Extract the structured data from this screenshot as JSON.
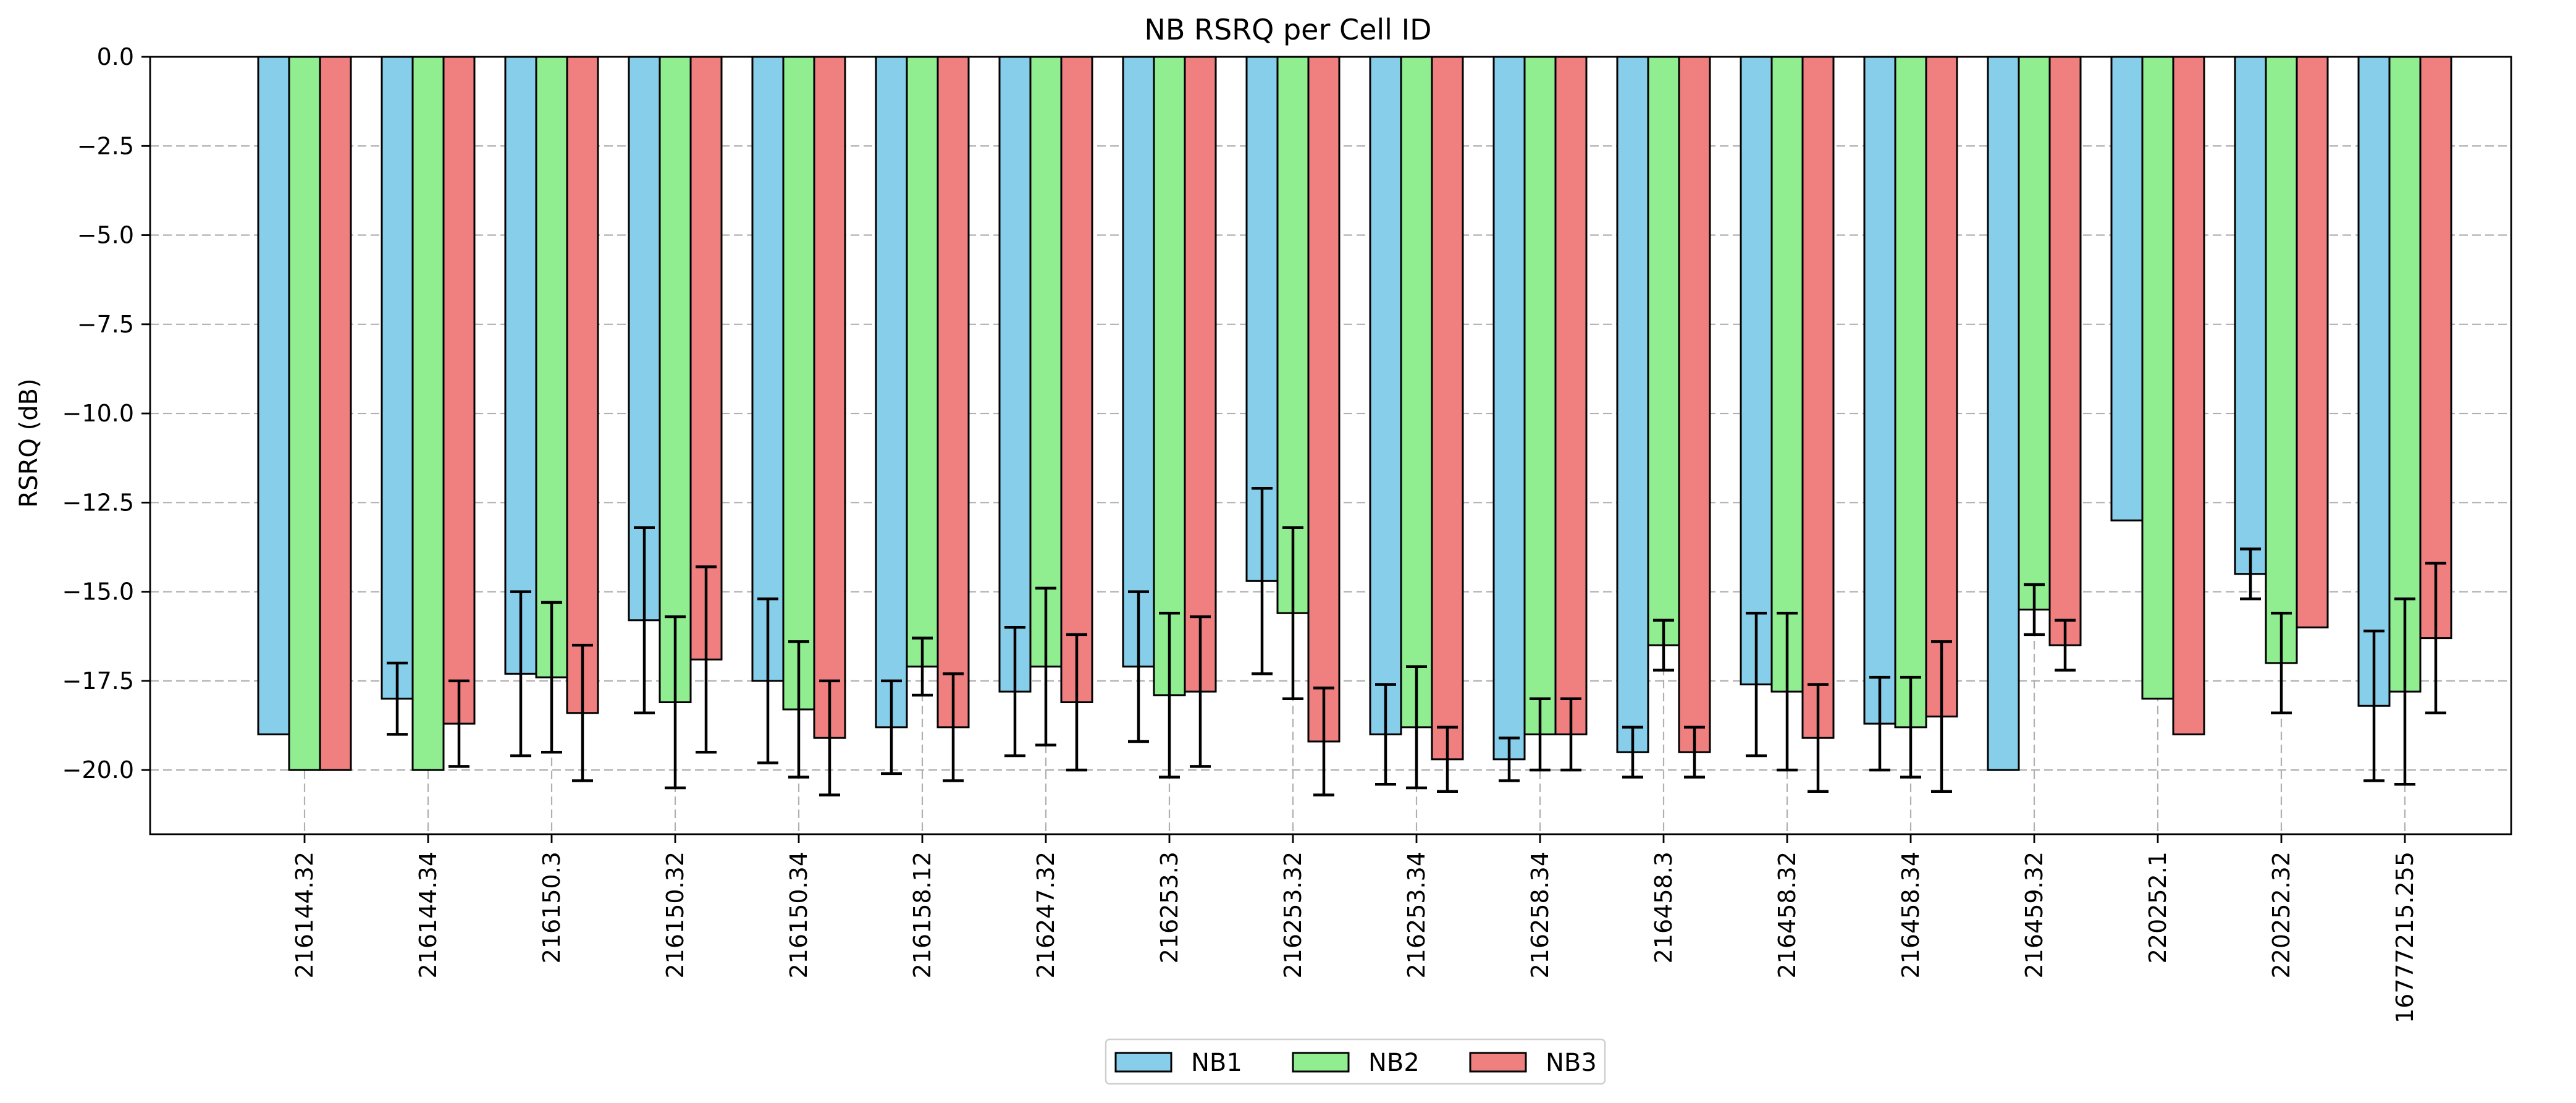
{
  "chart_data": {
    "type": "bar",
    "title": "NB RSRQ per Cell ID",
    "xlabel": "",
    "ylabel": "RSRQ (dB)",
    "ylim": [
      -21.8,
      0
    ],
    "yticks": [
      0.0,
      -2.5,
      -5.0,
      -7.5,
      -10.0,
      -12.5,
      -15.0,
      -17.5,
      -20.0
    ],
    "ytick_labels": [
      "0.0",
      "−2.5",
      "−5.0",
      "−7.5",
      "−10.0",
      "−12.5",
      "−15.0",
      "−17.5",
      "−20.0"
    ],
    "grid": true,
    "legend_position": "bottom-center",
    "categories": [
      "216144.32",
      "216144.34",
      "216150.3",
      "216150.32",
      "216150.34",
      "216158.12",
      "216247.32",
      "216253.3",
      "216253.32",
      "216253.34",
      "216258.34",
      "216458.3",
      "216458.32",
      "216458.34",
      "216459.32",
      "220252.1",
      "220252.32",
      "16777215.255"
    ],
    "series": [
      {
        "name": "NB1",
        "color": "#87ceeb",
        "values": [
          -19.0,
          -18.0,
          -17.3,
          -15.8,
          -17.5,
          -18.8,
          -17.8,
          -17.1,
          -14.7,
          -19.0,
          -19.7,
          -19.5,
          -17.6,
          -18.7,
          -20.0,
          -13.0,
          -14.5,
          -18.2
        ],
        "errors": [
          0,
          1.0,
          2.3,
          2.6,
          2.3,
          1.3,
          1.8,
          2.1,
          2.6,
          1.4,
          0.6,
          0.7,
          2.0,
          1.3,
          0,
          0,
          0.7,
          2.1
        ]
      },
      {
        "name": "NB2",
        "color": "#90ee90",
        "values": [
          -20.0,
          -20.0,
          -17.4,
          -18.1,
          -18.3,
          -17.1,
          -17.1,
          -17.9,
          -15.6,
          -18.8,
          -19.0,
          -16.5,
          -17.8,
          -18.8,
          -15.5,
          -18.0,
          -17.0,
          -17.8
        ],
        "errors": [
          0,
          0,
          2.1,
          2.4,
          1.9,
          0.8,
          2.2,
          2.3,
          2.4,
          1.7,
          1.0,
          0.7,
          2.2,
          1.4,
          0.7,
          0,
          1.4,
          2.6
        ]
      },
      {
        "name": "NB3",
        "color": "#f08080",
        "values": [
          -20.0,
          -18.7,
          -18.4,
          -16.9,
          -19.1,
          -18.8,
          -18.1,
          -17.8,
          -19.2,
          -19.7,
          -19.0,
          -19.5,
          -19.1,
          -18.5,
          -16.5,
          -19.0,
          -16.0,
          -16.3
        ],
        "errors": [
          0,
          1.2,
          1.9,
          2.6,
          1.6,
          1.5,
          1.9,
          2.1,
          1.5,
          0.9,
          1.0,
          0.7,
          1.5,
          2.1,
          0.7,
          0,
          0,
          2.1
        ]
      }
    ]
  }
}
